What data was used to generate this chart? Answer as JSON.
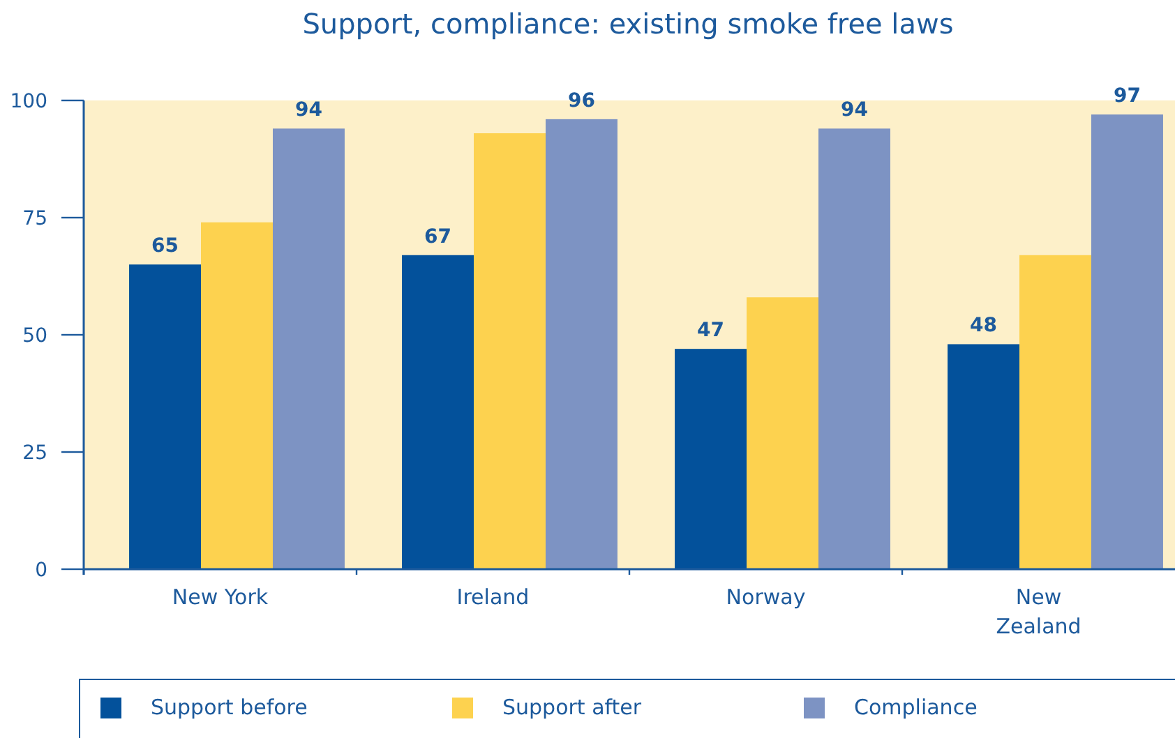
{
  "chart_data": {
    "type": "bar",
    "title": "Support, compliance:  existing smoke free laws",
    "categories": [
      "New York",
      "Ireland",
      "Norway",
      "New Zealand"
    ],
    "series": [
      {
        "name": "Support before",
        "color": "#03519b",
        "values": [
          65,
          67,
          47,
          48
        ],
        "value_labels": [
          "65",
          "67",
          "47",
          "48"
        ]
      },
      {
        "name": "Support after",
        "color": "#fdd24f",
        "values": [
          74,
          93,
          58,
          67
        ]
      },
      {
        "name": "Compliance",
        "color": "#7d93c3",
        "values": [
          94,
          96,
          94,
          97
        ],
        "value_labels": [
          "94",
          "96",
          "94",
          "97"
        ]
      }
    ],
    "ylim": [
      0,
      100
    ],
    "yticks": [
      0,
      25,
      50,
      75,
      100
    ],
    "grid": false,
    "legend": "bottom"
  }
}
